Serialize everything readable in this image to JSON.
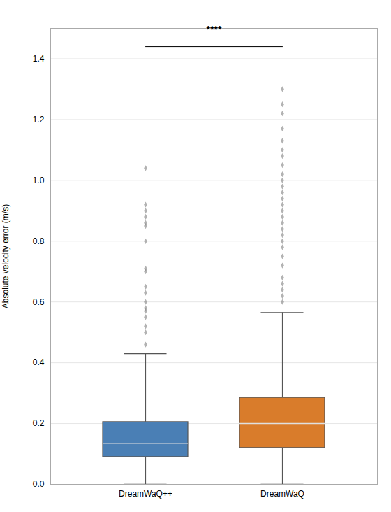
{
  "chart_data": {
    "type": "box",
    "ylabel": "Absolute velocity error (m/s)",
    "categories": [
      "DreamWaQ++",
      "DreamWaQ"
    ],
    "boxes": [
      {
        "color": "#4a7fb5",
        "q1": 0.09,
        "median": 0.135,
        "q3": 0.205,
        "whisker_low": 0.0,
        "whisker_high": 0.43,
        "outliers": [
          0.46,
          0.5,
          0.52,
          0.55,
          0.57,
          0.58,
          0.6,
          0.63,
          0.65,
          0.7,
          0.71,
          0.8,
          0.85,
          0.86,
          0.88,
          0.9,
          0.92,
          1.04
        ]
      },
      {
        "color": "#d97c2b",
        "q1": 0.12,
        "median": 0.2,
        "q3": 0.285,
        "whisker_low": 0.0,
        "whisker_high": 0.565,
        "outliers": [
          0.6,
          0.62,
          0.64,
          0.66,
          0.68,
          0.72,
          0.75,
          0.78,
          0.8,
          0.82,
          0.84,
          0.86,
          0.88,
          0.9,
          0.92,
          0.94,
          0.96,
          0.98,
          1.0,
          1.02,
          1.05,
          1.08,
          1.1,
          1.13,
          1.17,
          1.22,
          1.25,
          1.3
        ]
      }
    ],
    "ylim": [
      0.0,
      1.5
    ],
    "yticks": [
      {
        "value": 0.0,
        "label": "0.0"
      },
      0.2,
      0.4,
      0.6,
      0.8,
      {
        "value": 1.0,
        "label": "1.0"
      },
      1.2,
      1.4
    ],
    "grid": true,
    "annotations": [
      {
        "text": "****",
        "from": "DreamWaQ++",
        "to": "DreamWaQ",
        "line_y": 1.44,
        "y": 1.485
      }
    ]
  }
}
